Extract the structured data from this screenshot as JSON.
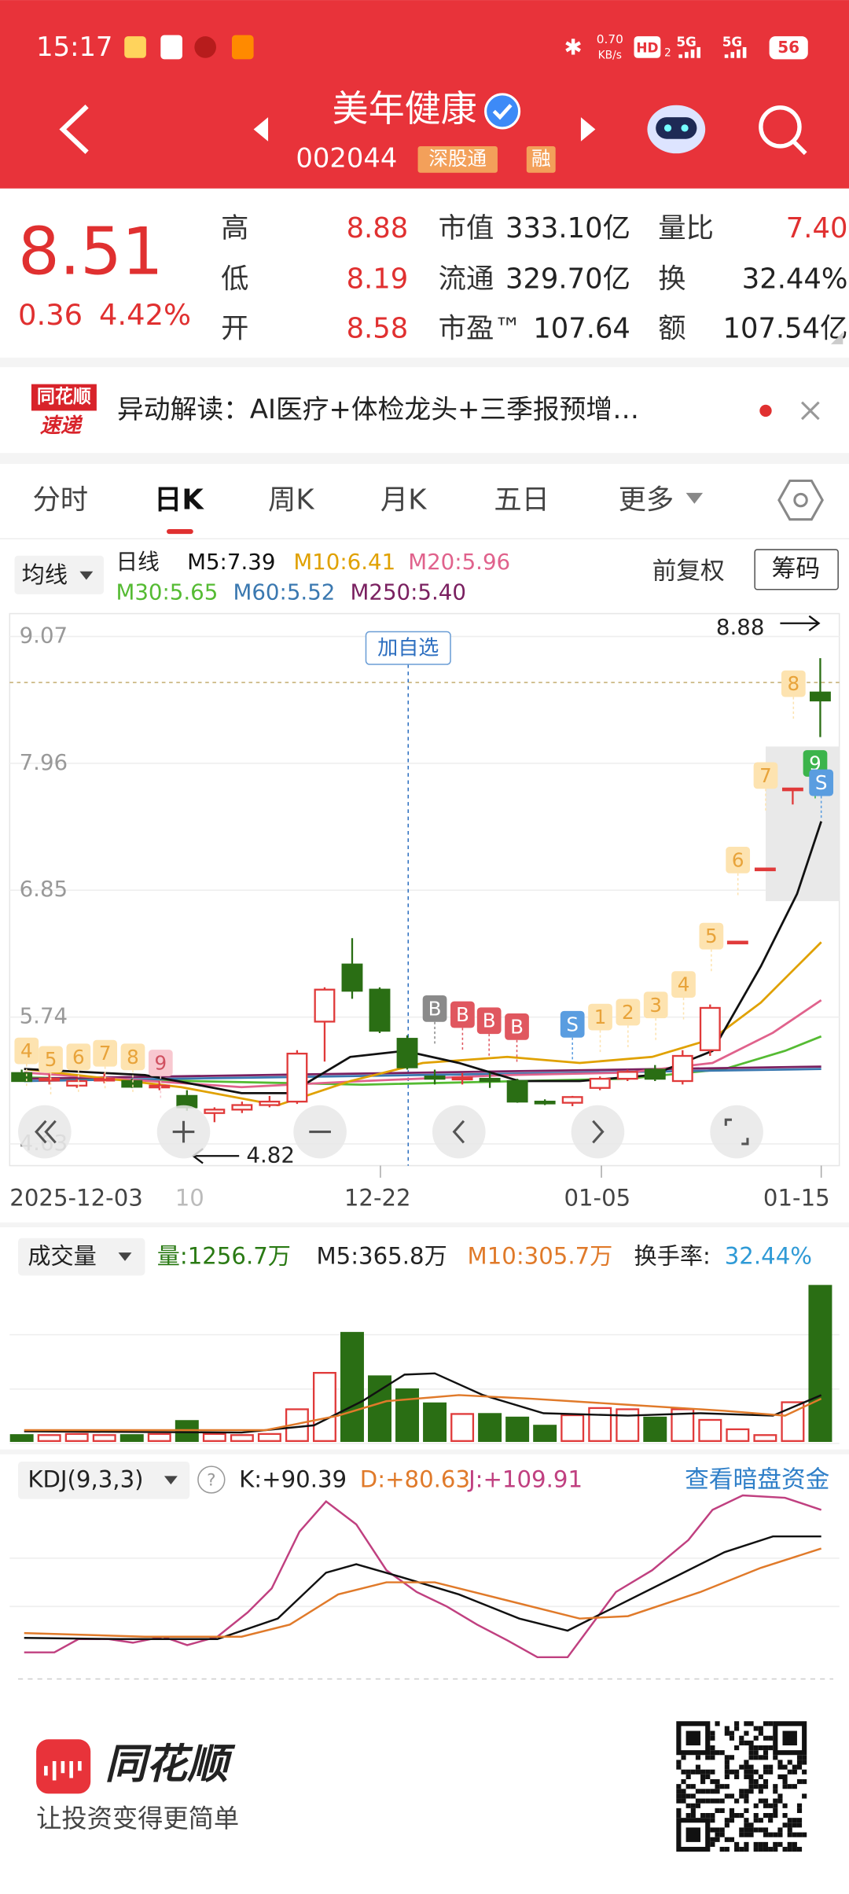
{
  "status_bar": {
    "time": "15:17",
    "net_speed": "0.70",
    "net_unit": "KB/s",
    "hd": "HD",
    "hd_sub": "2",
    "net1": "5G",
    "net2": "5G",
    "battery": "56"
  },
  "header": {
    "title": "美年健康",
    "code": "002044",
    "tags": [
      "深股通",
      "融"
    ]
  },
  "quote": {
    "price": "8.51",
    "change": "0.36",
    "change_pct": "4.42%",
    "stats": [
      [
        {
          "label": "高",
          "value": "8.88"
        },
        {
          "label": "市值",
          "value": "333.10亿"
        },
        {
          "label": "量比",
          "value": "7.40"
        }
      ],
      [
        {
          "label": "低",
          "value": "8.19"
        },
        {
          "label": "流通",
          "value": "329.70亿"
        },
        {
          "label": "换",
          "value": "32.44%"
        }
      ],
      [
        {
          "label": "开",
          "value": "8.58"
        },
        {
          "label": "市盈™",
          "value": "107.64"
        },
        {
          "label": "额",
          "value": "107.54亿"
        }
      ]
    ]
  },
  "notice": {
    "logo_top": "同花顺",
    "logo_bottom": "速递",
    "text": "异动解读：AI医疗+体检龙头+三季报预增…"
  },
  "tabs": [
    "分时",
    "日K",
    "周K",
    "月K",
    "五日",
    "更多"
  ],
  "kline": {
    "ma_selector": "均线",
    "period": "日线",
    "ma": [
      {
        "text": "M5:7.39",
        "color": "#111111"
      },
      {
        "text": "M10:6.41",
        "color": "#e0a100"
      },
      {
        "text": "M20:5.96",
        "color": "#e0628c"
      },
      {
        "text": "M30:5.65",
        "color": "#55bb33"
      },
      {
        "text": "M60:5.52",
        "color": "#3a78b0"
      },
      {
        "text": "M250:5.40",
        "color": "#7a2060"
      }
    ],
    "adjust": "前复权",
    "chips": "筹码",
    "ylim": [
      4.44,
      9.27
    ],
    "yticks": [
      9.07,
      7.96,
      6.85,
      5.74,
      4.63
    ],
    "candles": [
      [
        5.25,
        5.28,
        5.18,
        5.18
      ],
      [
        5.2,
        5.24,
        5.15,
        5.2
      ],
      [
        5.14,
        5.2,
        5.12,
        5.18
      ],
      [
        5.2,
        5.25,
        5.16,
        5.2
      ],
      [
        5.18,
        5.2,
        5.12,
        5.13
      ],
      [
        5.13,
        5.18,
        5.1,
        5.14
      ],
      [
        5.05,
        5.1,
        4.92,
        4.95
      ],
      [
        4.9,
        4.95,
        4.82,
        4.93
      ],
      [
        4.93,
        5.0,
        4.9,
        4.97
      ],
      [
        4.97,
        5.05,
        4.95,
        5.0
      ],
      [
        5.0,
        5.45,
        4.98,
        5.42
      ],
      [
        5.7,
        6.0,
        5.35,
        5.98
      ],
      [
        6.2,
        6.43,
        5.9,
        5.97
      ],
      [
        5.98,
        6.0,
        5.6,
        5.62
      ],
      [
        5.55,
        5.58,
        5.28,
        5.3
      ],
      [
        5.22,
        5.28,
        5.15,
        5.2
      ],
      [
        5.2,
        5.25,
        5.15,
        5.21
      ],
      [
        5.2,
        5.25,
        5.12,
        5.18
      ],
      [
        5.18,
        5.2,
        4.99,
        5.0
      ],
      [
        5.0,
        5.02,
        4.97,
        4.99
      ],
      [
        4.99,
        5.05,
        4.96,
        5.04
      ],
      [
        5.12,
        5.22,
        5.1,
        5.2
      ],
      [
        5.2,
        5.28,
        5.18,
        5.26
      ],
      [
        5.28,
        5.32,
        5.18,
        5.2
      ],
      [
        5.18,
        5.45,
        5.15,
        5.4
      ],
      [
        5.45,
        5.85,
        5.4,
        5.82
      ],
      [
        6.4,
        6.4,
        6.4,
        6.4
      ],
      [
        7.04,
        7.04,
        7.04,
        7.04
      ],
      [
        7.74,
        7.74,
        7.6,
        7.74
      ],
      [
        8.58,
        8.88,
        8.19,
        8.51
      ]
    ],
    "high_label": "8.88",
    "low_label": "4.82",
    "watch": "加自选",
    "signals": [
      "4",
      "5",
      "6",
      "7",
      "8",
      "9",
      "B",
      "B",
      "B",
      "B",
      "S",
      "1",
      "2",
      "3",
      "4",
      "5",
      "6",
      "7",
      "8",
      "9",
      "S"
    ],
    "dates": [
      "2025-12-03",
      "10",
      "12-22",
      "01-05",
      "01-15"
    ]
  },
  "volume": {
    "selector": "成交量",
    "vol": "量:1256.7万",
    "m5": "M5:365.8万",
    "m10": "M10:305.7万",
    "turnover_label": "换手率:",
    "turnover": "32.44%",
    "vlim": [
      0,
      1350
    ],
    "values": [
      48,
      48,
      57,
      48,
      48,
      57,
      162,
      57,
      48,
      57,
      257,
      552,
      876,
      524,
      419,
      305,
      219,
      219,
      190,
      124,
      209,
      267,
      257,
      190,
      257,
      171,
      95,
      48,
      314,
      1256.7
    ]
  },
  "kdj": {
    "selector": "KDJ(9,3,3)",
    "help": "?",
    "k": "K:+90.39",
    "d": "D:+80.63",
    "j": "J:+109.91",
    "link": "查看暗盘资金"
  },
  "footer": {
    "brand": "同花顺",
    "slogan": "让投资变得更简单"
  }
}
